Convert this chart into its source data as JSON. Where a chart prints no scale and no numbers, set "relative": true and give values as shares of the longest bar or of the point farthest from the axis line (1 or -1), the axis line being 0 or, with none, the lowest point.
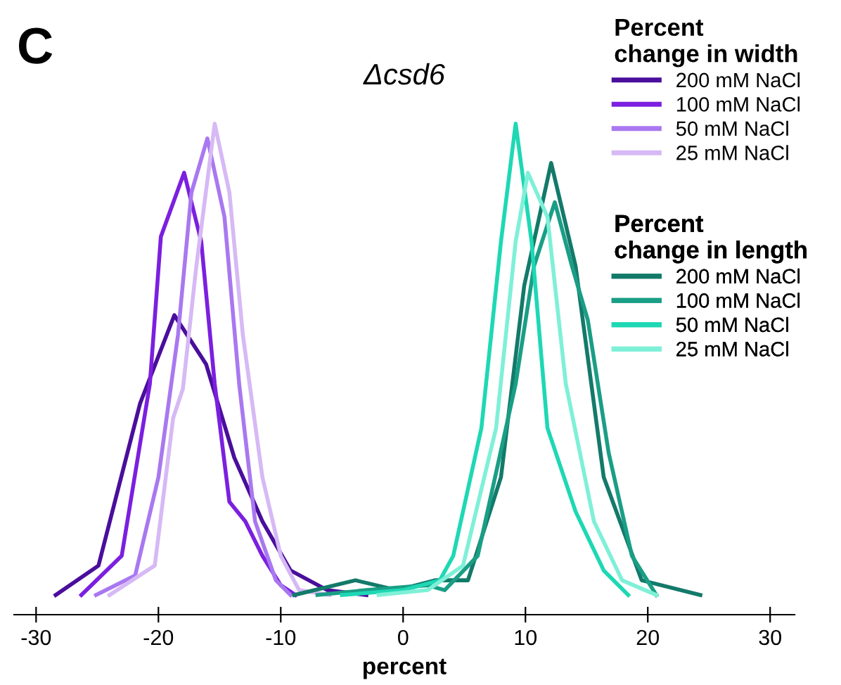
{
  "chart_data": {
    "type": "line",
    "title": "Δcsd6",
    "xlabel": "percent",
    "relative": true,
    "xlim": [
      -31.8,
      32
    ],
    "xticks": [
      -30,
      -20,
      -10,
      0,
      10,
      20,
      30
    ],
    "grid": false,
    "legend": "top right",
    "legend_title": [
      "Percent\nchange in width",
      "Percent\nchange in length"
    ],
    "annotations": [
      "C"
    ],
    "line_style": "solid",
    "marker": "none",
    "series": [
      {
        "name": "200 mM NaCl",
        "color": "#4a0e9c",
        "x": [
          -28.4,
          -24.9,
          -21.5,
          -18.7,
          -16.1,
          -13.8,
          -11.5,
          -9.2,
          -6.2,
          -3.0
        ],
        "values": [
          0.04,
          0.1,
          0.43,
          0.61,
          0.51,
          0.32,
          0.19,
          0.09,
          0.05,
          0.04
        ]
      },
      {
        "name": "100 mM NaCl",
        "color": "#7b1fe0",
        "x": [
          -26.3,
          -23.0,
          -20.7,
          -19.8,
          -17.9,
          -16.5,
          -15.4,
          -14.2,
          -12.9,
          -11.5,
          -10.0,
          -8.8
        ],
        "values": [
          0.04,
          0.12,
          0.47,
          0.77,
          0.9,
          0.76,
          0.47,
          0.23,
          0.19,
          0.12,
          0.06,
          0.04
        ]
      },
      {
        "name": "50 mM NaCl",
        "color": "#a978f0",
        "x": [
          -25.1,
          -21.9,
          -20.0,
          -18.4,
          -17.3,
          -16.0,
          -14.6,
          -13.4,
          -12.1,
          -10.4,
          -9.2
        ],
        "values": [
          0.04,
          0.08,
          0.28,
          0.57,
          0.86,
          0.97,
          0.81,
          0.47,
          0.19,
          0.07,
          0.04
        ]
      },
      {
        "name": "25 mM NaCl",
        "color": "#d6b9f5",
        "x": [
          -24.0,
          -20.3,
          -18.8,
          -18.0,
          -16.9,
          -15.4,
          -14.2,
          -13.1,
          -11.5,
          -10.0,
          -8.5,
          -6.0
        ],
        "values": [
          0.04,
          0.1,
          0.4,
          0.46,
          0.71,
          1.0,
          0.86,
          0.57,
          0.28,
          0.12,
          0.05,
          0.04
        ]
      },
      {
        "name": "200 mM NaCl",
        "color": "#137a6a",
        "x": [
          -8.9,
          -3.9,
          -0.5,
          2.6,
          5.3,
          8.0,
          9.9,
          12.1,
          14.1,
          16.4,
          19.5,
          24.3
        ],
        "values": [
          0.04,
          0.07,
          0.05,
          0.07,
          0.07,
          0.28,
          0.67,
          0.92,
          0.71,
          0.28,
          0.07,
          0.04
        ]
      },
      {
        "name": "100 mM NaCl",
        "color": "#1a9e86",
        "x": [
          -7.0,
          -3.0,
          2.0,
          3.4,
          6.1,
          9.2,
          10.7,
          12.4,
          13.8,
          15.1,
          16.8,
          18.7,
          20.7
        ],
        "values": [
          0.04,
          0.05,
          0.06,
          0.05,
          0.12,
          0.47,
          0.71,
          0.84,
          0.71,
          0.6,
          0.33,
          0.12,
          0.04
        ]
      },
      {
        "name": "50 mM NaCl",
        "color": "#1ed8b4",
        "x": [
          -5.0,
          0.0,
          3.0,
          4.1,
          6.4,
          8.0,
          9.2,
          10.5,
          11.8,
          14.1,
          16.4,
          18.4
        ],
        "values": [
          0.04,
          0.05,
          0.07,
          0.12,
          0.38,
          0.76,
          1.0,
          0.76,
          0.38,
          0.21,
          0.09,
          0.04
        ]
      },
      {
        "name": "25 mM NaCl",
        "color": "#7ff0d8",
        "x": [
          -2.0,
          2.0,
          4.9,
          7.6,
          9.2,
          10.2,
          11.8,
          13.3,
          15.6,
          17.9,
          20.7
        ],
        "values": [
          0.04,
          0.05,
          0.1,
          0.38,
          0.76,
          0.9,
          0.81,
          0.47,
          0.19,
          0.07,
          0.04
        ]
      }
    ]
  }
}
